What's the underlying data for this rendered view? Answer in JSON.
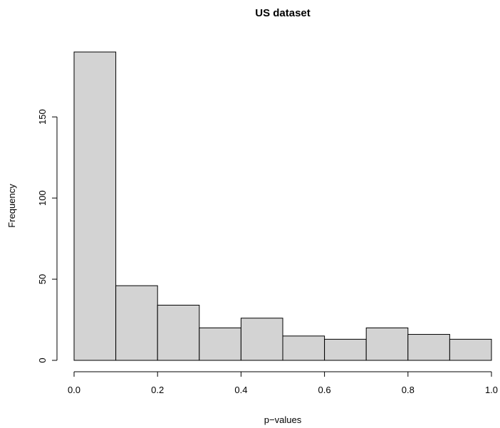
{
  "chart_data": {
    "type": "bar",
    "subtype": "histogram",
    "title": "US dataset",
    "xlabel": "p−values",
    "ylabel": "Frequency",
    "bins": [
      {
        "start": 0.0,
        "end": 0.1,
        "count": 190
      },
      {
        "start": 0.1,
        "end": 0.2,
        "count": 46
      },
      {
        "start": 0.2,
        "end": 0.3,
        "count": 34
      },
      {
        "start": 0.3,
        "end": 0.4,
        "count": 20
      },
      {
        "start": 0.4,
        "end": 0.5,
        "count": 26
      },
      {
        "start": 0.5,
        "end": 0.6,
        "count": 15
      },
      {
        "start": 0.6,
        "end": 0.7,
        "count": 13
      },
      {
        "start": 0.7,
        "end": 0.8,
        "count": 20
      },
      {
        "start": 0.8,
        "end": 0.9,
        "count": 16
      },
      {
        "start": 0.9,
        "end": 1.0,
        "count": 13
      }
    ],
    "xlim": [
      0.0,
      1.0
    ],
    "ylim": [
      0,
      190
    ],
    "x_ticks": [
      "0.0",
      "0.2",
      "0.4",
      "0.6",
      "0.8",
      "1.0"
    ],
    "y_ticks": [
      "0",
      "50",
      "100",
      "150"
    ],
    "bar_color": "#d3d3d3",
    "bar_edge_color": "#000000",
    "grid": false,
    "legend": "none"
  }
}
